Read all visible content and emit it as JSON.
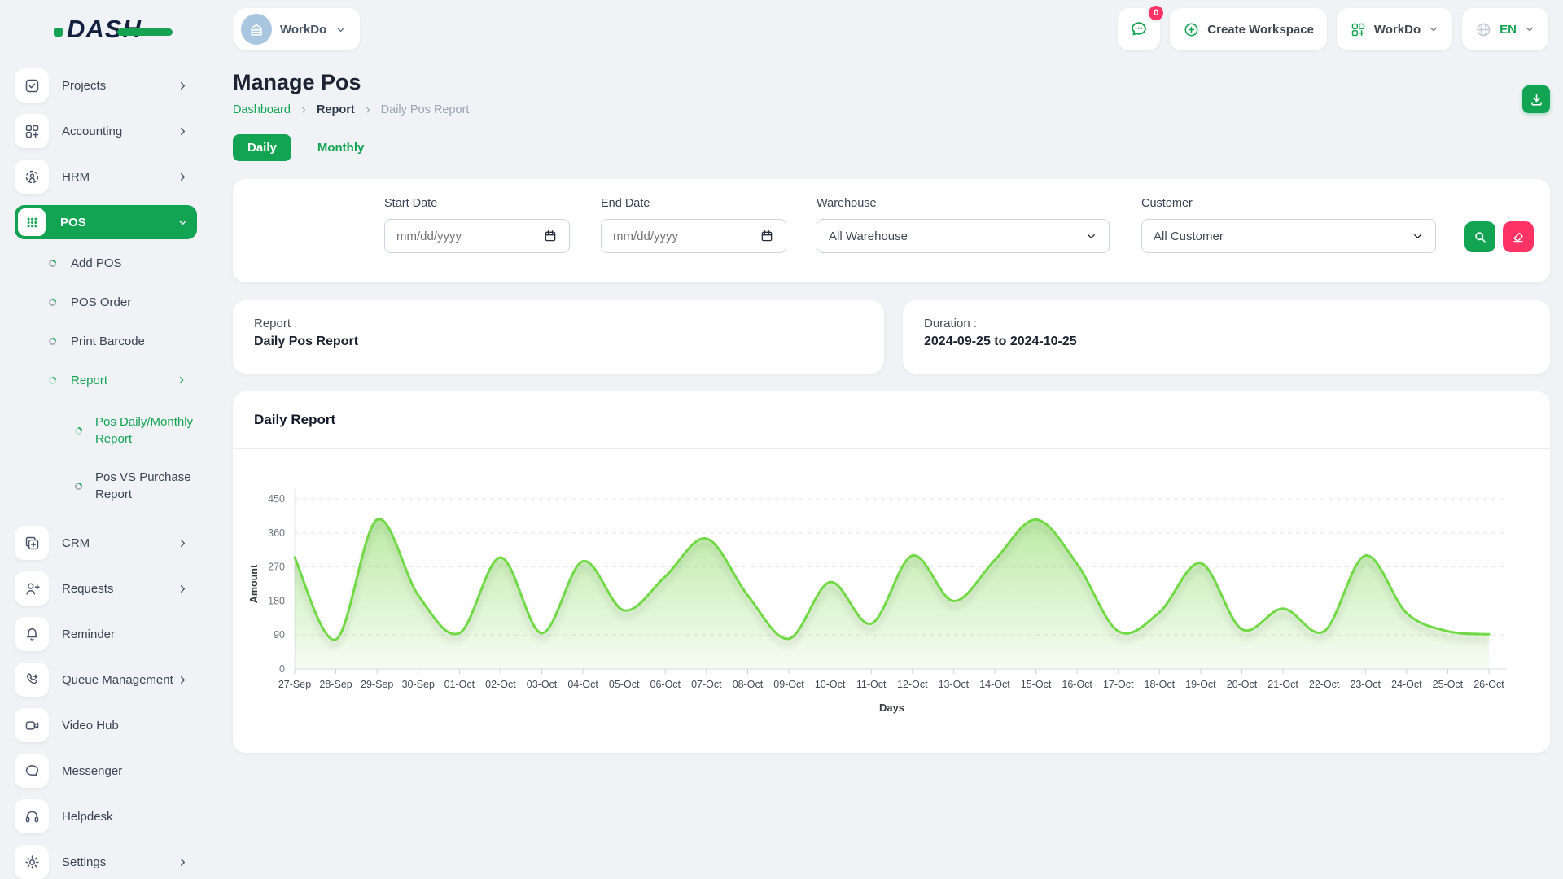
{
  "header": {
    "logo_text": "DASH",
    "workspace_switcher": {
      "label": "WorkDo"
    },
    "messages": {
      "badge_count": "0"
    },
    "create_workspace": {
      "label": "Create Workspace"
    },
    "workspace_menu": {
      "label": "WorkDo"
    },
    "language": {
      "code": "EN"
    }
  },
  "sidebar": {
    "items": [
      {
        "label": "Projects",
        "icon": "checkbox-icon",
        "chevron": "right",
        "level": 0
      },
      {
        "label": "Accounting",
        "icon": "grid-icon",
        "chevron": "right",
        "level": 0
      },
      {
        "label": "HRM",
        "icon": "hrm-icon",
        "chevron": "right",
        "level": 0
      },
      {
        "label": "POS",
        "icon": "pos-grid-icon",
        "chevron": "down",
        "level": 0,
        "active": true
      },
      {
        "label": "Add POS",
        "level": 1
      },
      {
        "label": "POS Order",
        "level": 1
      },
      {
        "label": "Print Barcode",
        "level": 1
      },
      {
        "label": "Report",
        "level": 1,
        "chevron": "right",
        "active": true
      },
      {
        "label": "Pos Daily/Monthly Report",
        "level": 2,
        "active": true
      },
      {
        "label": "Pos VS Purchase Report",
        "level": 2
      },
      {
        "label": "CRM",
        "icon": "crm-icon",
        "chevron": "right",
        "level": 0
      },
      {
        "label": "Requests",
        "icon": "user-plus-icon",
        "chevron": "right",
        "level": 0
      },
      {
        "label": "Reminder",
        "icon": "bell-icon",
        "level": 0
      },
      {
        "label": "Queue Management",
        "icon": "phone-icon",
        "chevron": "right",
        "level": 0
      },
      {
        "label": "Video Hub",
        "icon": "video-icon",
        "level": 0
      },
      {
        "label": "Messenger",
        "icon": "chat-icon",
        "level": 0
      },
      {
        "label": "Helpdesk",
        "icon": "headset-icon",
        "level": 0
      },
      {
        "label": "Settings",
        "icon": "gear-icon",
        "chevron": "right",
        "level": 0
      }
    ]
  },
  "page": {
    "title": "Manage Pos",
    "breadcrumb": [
      {
        "label": "Dashboard"
      },
      {
        "label": "Report"
      },
      {
        "label": "Daily Pos Report"
      }
    ],
    "tabs": [
      {
        "label": "Daily",
        "active": true
      },
      {
        "label": "Monthly",
        "active": false
      }
    ]
  },
  "filters": {
    "start_date": {
      "label": "Start Date",
      "placeholder": "mm/dd/yyyy"
    },
    "end_date": {
      "label": "End Date",
      "placeholder": "mm/dd/yyyy"
    },
    "warehouse": {
      "label": "Warehouse",
      "value": "All Warehouse"
    },
    "customer": {
      "label": "Customer",
      "value": "All Customer"
    }
  },
  "summary_cards": [
    {
      "label": "Report :",
      "value": "Daily Pos Report"
    },
    {
      "label": "Duration :",
      "value": "2024-09-25 to 2024-10-25"
    }
  ],
  "chart_data": {
    "type": "area",
    "title": "Daily Report",
    "xlabel": "Days",
    "ylabel": "Amount",
    "ylim": [
      0,
      450
    ],
    "yticks": [
      0,
      90,
      180,
      270,
      360,
      450
    ],
    "grid": true,
    "legend": "none",
    "line_color": "#6fd944",
    "categories": [
      "27-Sep",
      "28-Sep",
      "29-Sep",
      "30-Sep",
      "01-Oct",
      "02-Oct",
      "03-Oct",
      "04-Oct",
      "05-Oct",
      "06-Oct",
      "07-Oct",
      "08-Oct",
      "09-Oct",
      "10-Oct",
      "11-Oct",
      "12-Oct",
      "13-Oct",
      "14-Oct",
      "15-Oct",
      "16-Oct",
      "17-Oct",
      "18-Oct",
      "19-Oct",
      "20-Oct",
      "21-Oct",
      "22-Oct",
      "23-Oct",
      "24-Oct",
      "25-Oct",
      "26-Oct"
    ],
    "values": [
      295,
      78,
      395,
      195,
      95,
      295,
      95,
      285,
      155,
      245,
      345,
      195,
      80,
      230,
      120,
      300,
      180,
      288,
      395,
      278,
      100,
      150,
      280,
      105,
      160,
      100,
      300,
      148,
      100,
      92
    ]
  },
  "colors": {
    "primary_green": "#12a452",
    "chart_line_green": "#6fd944",
    "badge_pink": "#fd3366",
    "background": "#f0f2f6"
  }
}
